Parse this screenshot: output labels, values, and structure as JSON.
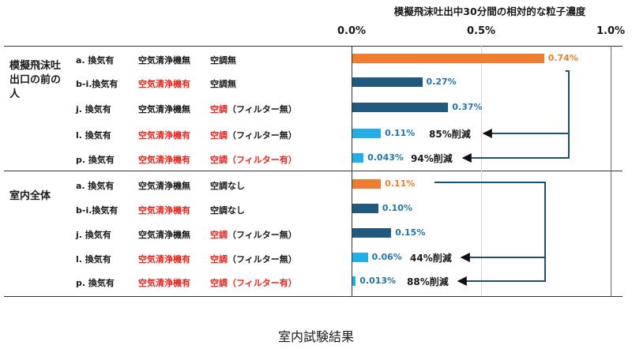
{
  "chart_data": {
    "type": "bar",
    "orientation": "horizontal",
    "title": "模擬飛沫吐出中30分間の相対的な粒子濃度",
    "xlim": [
      0,
      1.0
    ],
    "x_ticks": [
      "0.0%",
      "0.5%",
      "1.0%"
    ],
    "groups": [
      {
        "name": "模擬飛沫吐出口の前の人",
        "rows": [
          {
            "prefix": "a. 換気有",
            "p2": "空気清浄機無",
            "p2_red": false,
            "p3a": "空調",
            "p3b": "無",
            "p3a_red": false,
            "p3b_red": false,
            "value": 0.74,
            "label": "0.74%",
            "color": "#ee7d31"
          },
          {
            "prefix": "b-i.換気有",
            "p2": "空気清浄機有",
            "p2_red": true,
            "p3a": "空調",
            "p3b": "無",
            "p3a_red": false,
            "p3b_red": false,
            "value": 0.27,
            "label": "0.27%",
            "color": "#1f5a7e"
          },
          {
            "prefix": "j. 換気有",
            "p2": "空気清浄機無",
            "p2_red": false,
            "p3a": "空調",
            "p3b": "（フィルター無）",
            "p3a_red": true,
            "p3b_red": false,
            "value": 0.37,
            "label": "0.37%",
            "color": "#1f5a7e"
          },
          {
            "prefix": "l. 換気有",
            "p2": "空気清浄機有",
            "p2_red": true,
            "p3a": "空調",
            "p3b": "（フィルター無）",
            "p3a_red": true,
            "p3b_red": false,
            "value": 0.11,
            "label": "0.11%",
            "color": "#22aee6"
          },
          {
            "prefix": "p. 換気有",
            "p2": "空気清浄機有",
            "p2_red": true,
            "p3a": "空調",
            "p3b": "（フィルター有）",
            "p3a_red": true,
            "p3b_red": true,
            "value": 0.043,
            "label": "0.043%",
            "color": "#22aee6"
          }
        ],
        "reductions": [
          "85%削減",
          "94%削減"
        ]
      },
      {
        "name": "室内全体",
        "rows": [
          {
            "prefix": "a. 換気有",
            "p2": "空気清浄機無",
            "p2_red": false,
            "p3a": "空調",
            "p3b": "なし",
            "p3a_red": false,
            "p3b_red": false,
            "value": 0.11,
            "label": "0.11%",
            "color": "#ee7d31"
          },
          {
            "prefix": "b-i.換気有",
            "p2": "空気清浄機有",
            "p2_red": true,
            "p3a": "空調",
            "p3b": "なし",
            "p3a_red": false,
            "p3b_red": false,
            "value": 0.1,
            "label": "0.10%",
            "color": "#1f5a7e"
          },
          {
            "prefix": "j. 換気有",
            "p2": "空気清浄機無",
            "p2_red": false,
            "p3a": "空調",
            "p3b": "（フィルター無）",
            "p3a_red": true,
            "p3b_red": false,
            "value": 0.15,
            "label": "0.15%",
            "color": "#1f5a7e"
          },
          {
            "prefix": "l. 換気有",
            "p2": "空気清浄機有",
            "p2_red": true,
            "p3a": "空調",
            "p3b": "（フィルター無）",
            "p3a_red": true,
            "p3b_red": false,
            "value": 0.06,
            "label": "0.06%",
            "color": "#22aee6"
          },
          {
            "prefix": "p. 換気有",
            "p2": "空気清浄機有",
            "p2_red": true,
            "p3a": "空調",
            "p3b": "（フィルター有）",
            "p3a_red": true,
            "p3b_red": true,
            "value": 0.013,
            "label": "0.013%",
            "color": "#22aee6"
          }
        ],
        "reductions": [
          "44%削減",
          "88%削減"
        ]
      }
    ],
    "caption": "室内試験結果"
  }
}
